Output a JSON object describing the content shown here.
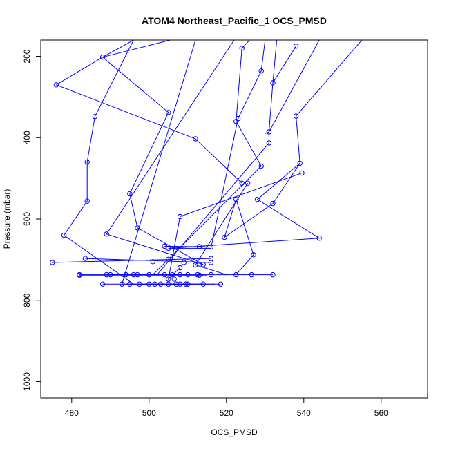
{
  "chart_data": {
    "type": "scatter",
    "title": "ATOM4 Northeast_Pacific_1 OCS_PMSD",
    "xlabel": "OCS_PMSD",
    "ylabel": "Pressure (mbar)",
    "xlim": [
      472,
      572
    ],
    "ylim": [
      1040,
      160
    ],
    "y_reversed": true,
    "grid": false,
    "x_ticks": [
      480,
      500,
      520,
      540,
      560
    ],
    "y_ticks": [
      200,
      400,
      600,
      800,
      1000
    ],
    "color": "#0000ff",
    "segments": [
      [
        [
          476,
          270
        ],
        [
          488,
          202
        ],
        [
          496,
          160
        ]
      ],
      [
        [
          505.5,
          160
        ],
        [
          488,
          202
        ],
        [
          505,
          338
        ]
      ],
      [
        [
          505,
          338
        ],
        [
          495,
          538
        ],
        [
          497,
          622
        ],
        [
          514,
          712
        ]
      ],
      [
        [
          486,
          348
        ],
        [
          484,
          460
        ],
        [
          484,
          556
        ],
        [
          478,
          640
        ],
        [
          496,
          760
        ]
      ],
      [
        [
          476,
          270
        ],
        [
          512,
          403
        ],
        [
          524,
          512
        ]
      ],
      [
        [
          496,
          160
        ],
        [
          486,
          348
        ]
      ],
      [
        [
          526,
          160
        ],
        [
          524,
          180
        ]
      ],
      [
        [
          524,
          180
        ],
        [
          522.5,
          360
        ],
        [
          529,
          470
        ],
        [
          501,
          737
        ]
      ],
      [
        [
          530,
          160
        ],
        [
          529,
          236
        ],
        [
          523,
          353
        ],
        [
          516,
          672
        ],
        [
          505,
          672
        ]
      ],
      [
        [
          544,
          160
        ],
        [
          531,
          386
        ],
        [
          531,
          413
        ],
        [
          502,
          738
        ]
      ],
      [
        [
          533,
          160
        ],
        [
          532,
          265
        ],
        [
          531,
          386
        ],
        [
          530,
          390
        ]
      ],
      [
        [
          555,
          160
        ],
        [
          538,
          347
        ],
        [
          539,
          463
        ],
        [
          528,
          552
        ],
        [
          544,
          647
        ],
        [
          505,
          672
        ]
      ],
      [
        [
          538,
          175
        ],
        [
          532,
          265
        ]
      ],
      [
        [
          522,
          160
        ],
        [
          489,
          637
        ],
        [
          514,
          712
        ]
      ],
      [
        [
          512,
          160
        ],
        [
          493,
          760
        ]
      ],
      [
        [
          539,
          463
        ],
        [
          532,
          562
        ],
        [
          519.5,
          645
        ],
        [
          522.5,
          552
        ],
        [
          527,
          688
        ],
        [
          522.5,
          737
        ]
      ],
      [
        [
          539.5,
          487
        ],
        [
          508,
          594
        ],
        [
          505,
          748
        ],
        [
          508,
          720
        ]
      ],
      [
        [
          525.5,
          512
        ],
        [
          512,
          713
        ],
        [
          520,
          737
        ]
      ],
      [
        [
          475,
          707
        ],
        [
          516,
          697
        ]
      ],
      [
        [
          483.5,
          697
        ],
        [
          516,
          707
        ]
      ],
      [
        [
          504,
          667
        ],
        [
          513,
          668
        ],
        [
          516,
          669
        ]
      ],
      [
        [
          482,
          737
        ],
        [
          522.5,
          737
        ],
        [
          524,
          737
        ],
        [
          532,
          737
        ]
      ],
      [
        [
          482,
          738
        ],
        [
          509,
          738
        ],
        [
          513,
          738
        ],
        [
          515,
          738
        ]
      ],
      [
        [
          489,
          737
        ],
        [
          497,
          737
        ],
        [
          510,
          737
        ]
      ],
      [
        [
          488,
          760
        ],
        [
          508,
          760
        ],
        [
          518.5,
          760
        ]
      ],
      [
        [
          493,
          760
        ],
        [
          501,
          760
        ],
        [
          514,
          760
        ]
      ],
      [
        [
          495,
          760
        ],
        [
          510,
          760
        ]
      ],
      [
        [
          497,
          760
        ],
        [
          509,
          760
        ]
      ],
      [
        [
          501,
          760
        ],
        [
          505,
          760
        ],
        [
          517,
          760
        ]
      ]
    ],
    "points": [
      [
        476,
        270
      ],
      [
        488,
        202
      ],
      [
        505,
        338
      ],
      [
        486,
        348
      ],
      [
        484,
        460
      ],
      [
        484,
        556
      ],
      [
        478,
        640
      ],
      [
        512,
        403
      ],
      [
        524,
        512
      ],
      [
        524,
        180
      ],
      [
        522.5,
        360
      ],
      [
        529,
        470
      ],
      [
        529,
        236
      ],
      [
        523,
        353
      ],
      [
        531,
        386
      ],
      [
        531,
        413
      ],
      [
        532,
        265
      ],
      [
        538,
        347
      ],
      [
        539,
        463
      ],
      [
        528,
        552
      ],
      [
        544,
        647
      ],
      [
        538,
        175
      ],
      [
        495,
        538
      ],
      [
        497,
        622
      ],
      [
        489,
        637
      ],
      [
        514,
        712
      ],
      [
        532,
        562
      ],
      [
        519.5,
        645
      ],
      [
        522.5,
        552
      ],
      [
        527,
        688
      ],
      [
        539.5,
        487
      ],
      [
        508,
        594
      ],
      [
        525.5,
        512
      ],
      [
        505,
        748
      ],
      [
        508,
        720
      ],
      [
        475,
        707
      ],
      [
        483.5,
        697
      ],
      [
        516,
        697
      ],
      [
        516,
        707
      ],
      [
        504,
        667
      ],
      [
        513,
        668
      ],
      [
        516,
        669
      ],
      [
        505,
        672
      ],
      [
        512,
        713
      ],
      [
        501,
        705
      ],
      [
        505,
        699
      ],
      [
        509,
        707
      ],
      [
        482,
        737
      ],
      [
        482,
        738
      ],
      [
        489,
        737
      ],
      [
        490,
        737
      ],
      [
        494,
        737
      ],
      [
        496,
        737
      ],
      [
        497,
        737
      ],
      [
        500,
        737
      ],
      [
        504,
        737
      ],
      [
        506,
        737
      ],
      [
        508,
        737
      ],
      [
        510,
        737
      ],
      [
        512.5,
        737
      ],
      [
        513,
        738
      ],
      [
        516,
        737
      ],
      [
        522.5,
        737
      ],
      [
        526.5,
        737
      ],
      [
        532,
        737
      ],
      [
        506.5,
        748
      ],
      [
        488,
        760
      ],
      [
        493,
        760
      ],
      [
        495,
        760
      ],
      [
        497.5,
        760
      ],
      [
        500,
        760
      ],
      [
        501.5,
        760
      ],
      [
        503,
        760
      ],
      [
        505,
        760
      ],
      [
        507,
        760
      ],
      [
        508,
        760
      ],
      [
        509.5,
        760
      ],
      [
        510,
        760
      ],
      [
        514,
        760
      ],
      [
        518.5,
        760
      ]
    ]
  }
}
